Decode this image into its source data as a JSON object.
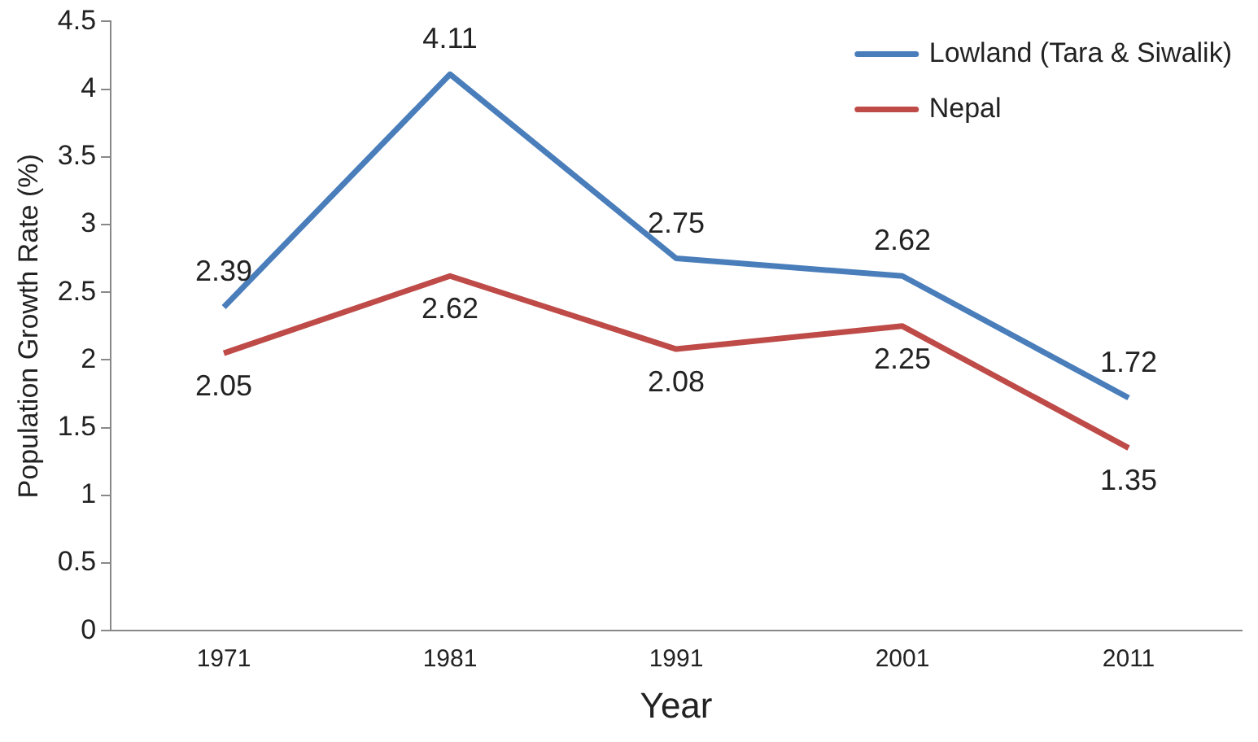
{
  "chart_data": {
    "type": "line",
    "xlabel": "Year",
    "ylabel": "Population Growth Rate (%)",
    "categories": [
      "1971",
      "1981",
      "1991",
      "2001",
      "2011"
    ],
    "series": [
      {
        "name": "Lowland (Tara & Siwalik)",
        "color": "#4a7ebb",
        "values": [
          2.39,
          4.11,
          2.75,
          2.62,
          1.72
        ]
      },
      {
        "name": "Nepal",
        "color": "#be4b48",
        "values": [
          2.05,
          2.62,
          2.08,
          2.25,
          1.35
        ]
      }
    ],
    "ylim": [
      0,
      4.5
    ],
    "yticks": [
      0,
      0.5,
      1,
      1.5,
      2,
      2.5,
      3,
      3.5,
      4,
      4.5
    ],
    "grid": false,
    "legend": "top right",
    "marker": "none",
    "line_style": "solid",
    "data_labels": true
  }
}
